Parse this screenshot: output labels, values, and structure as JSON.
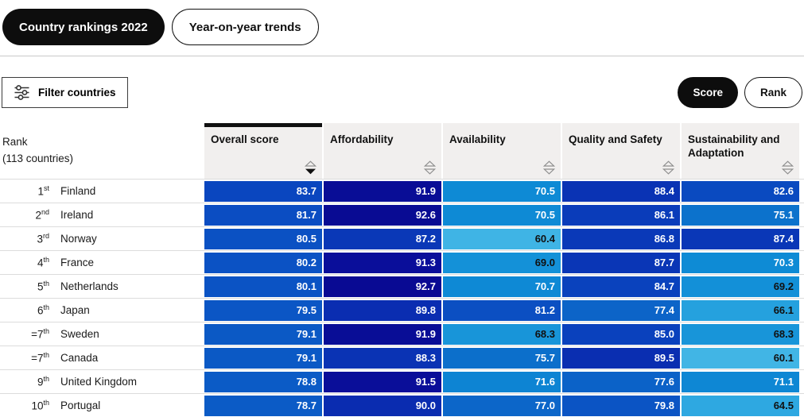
{
  "tabs": [
    {
      "label": "Country rankings 2022",
      "active": true
    },
    {
      "label": "Year-on-year trends",
      "active": false
    }
  ],
  "filter_button": {
    "label": "Filter countries"
  },
  "view_toggle": [
    {
      "label": "Score",
      "active": true
    },
    {
      "label": "Rank",
      "active": false
    }
  ],
  "table": {
    "rank_header": {
      "line1": "Rank",
      "line2": "(113 countries)"
    },
    "columns": [
      {
        "label": "Overall score",
        "sort": "desc"
      },
      {
        "label": "Affordability",
        "sort": "none"
      },
      {
        "label": "Availability",
        "sort": "none"
      },
      {
        "label": "Quality and Safety",
        "sort": "none"
      },
      {
        "label": "Sustainability and Adaptation",
        "sort": "none"
      }
    ],
    "rows": [
      {
        "rank_prefix": "",
        "rank": "1",
        "suffix": "st",
        "country": "Finland",
        "values": [
          83.7,
          91.9,
          70.5,
          88.4,
          82.6
        ]
      },
      {
        "rank_prefix": "",
        "rank": "2",
        "suffix": "nd",
        "country": "Ireland",
        "values": [
          81.7,
          92.6,
          70.5,
          86.1,
          75.1
        ]
      },
      {
        "rank_prefix": "",
        "rank": "3",
        "suffix": "rd",
        "country": "Norway",
        "values": [
          80.5,
          87.2,
          60.4,
          86.8,
          87.4
        ]
      },
      {
        "rank_prefix": "",
        "rank": "4",
        "suffix": "th",
        "country": "France",
        "values": [
          80.2,
          91.3,
          69.0,
          87.7,
          70.3
        ]
      },
      {
        "rank_prefix": "",
        "rank": "5",
        "suffix": "th",
        "country": "Netherlands",
        "values": [
          80.1,
          92.7,
          70.7,
          84.7,
          69.2
        ]
      },
      {
        "rank_prefix": "",
        "rank": "6",
        "suffix": "th",
        "country": "Japan",
        "values": [
          79.5,
          89.8,
          81.2,
          77.4,
          66.1
        ]
      },
      {
        "rank_prefix": "=",
        "rank": "7",
        "suffix": "th",
        "country": "Sweden",
        "values": [
          79.1,
          91.9,
          68.3,
          85.0,
          68.3
        ]
      },
      {
        "rank_prefix": "=",
        "rank": "7",
        "suffix": "th",
        "country": "Canada",
        "values": [
          79.1,
          88.3,
          75.7,
          89.5,
          60.1
        ]
      },
      {
        "rank_prefix": "",
        "rank": "9",
        "suffix": "th",
        "country": "United Kingdom",
        "values": [
          78.8,
          91.5,
          71.6,
          77.6,
          71.1
        ]
      },
      {
        "rank_prefix": "",
        "rank": "10",
        "suffix": "th",
        "country": "Portugal",
        "values": [
          78.7,
          90.0,
          77.0,
          79.8,
          64.5
        ]
      }
    ]
  },
  "colors": {
    "accent_black": "#0d0d0d",
    "header_bg": "#f1efee",
    "row_line": "#dcdcdc",
    "value_text_light": "#ffffff",
    "value_text_dark": "#111111",
    "dark_text_below": 70,
    "scale": [
      {
        "v": 60,
        "c": "#41b5e5"
      },
      {
        "v": 65,
        "c": "#2ca7e0"
      },
      {
        "v": 70,
        "c": "#0e8cd6"
      },
      {
        "v": 75,
        "c": "#0c73cc"
      },
      {
        "v": 80,
        "c": "#0b53c4"
      },
      {
        "v": 85,
        "c": "#0a41bd"
      },
      {
        "v": 90,
        "c": "#0a2cb0"
      },
      {
        "v": 91,
        "c": "#0a0f9b"
      },
      {
        "v": 94,
        "c": "#08078c"
      }
    ]
  },
  "chart_data": {
    "type": "table",
    "title": "Country rankings 2022",
    "columns": [
      "Rank",
      "Country",
      "Overall score",
      "Affordability",
      "Availability",
      "Quality and Safety",
      "Sustainability and Adaptation"
    ],
    "rows": [
      [
        "1st",
        "Finland",
        83.7,
        91.9,
        70.5,
        88.4,
        82.6
      ],
      [
        "2nd",
        "Ireland",
        81.7,
        92.6,
        70.5,
        86.1,
        75.1
      ],
      [
        "3rd",
        "Norway",
        80.5,
        87.2,
        60.4,
        86.8,
        87.4
      ],
      [
        "4th",
        "France",
        80.2,
        91.3,
        69.0,
        87.7,
        70.3
      ],
      [
        "5th",
        "Netherlands",
        80.1,
        92.7,
        70.7,
        84.7,
        69.2
      ],
      [
        "6th",
        "Japan",
        79.5,
        89.8,
        81.2,
        77.4,
        66.1
      ],
      [
        "=7th",
        "Sweden",
        79.1,
        91.9,
        68.3,
        85.0,
        68.3
      ],
      [
        "=7th",
        "Canada",
        79.1,
        88.3,
        75.7,
        89.5,
        60.1
      ],
      [
        "9th",
        "United Kingdom",
        78.8,
        91.5,
        71.6,
        77.6,
        71.1
      ],
      [
        "10th",
        "Portugal",
        78.7,
        90.0,
        77.0,
        79.8,
        64.5
      ]
    ]
  }
}
